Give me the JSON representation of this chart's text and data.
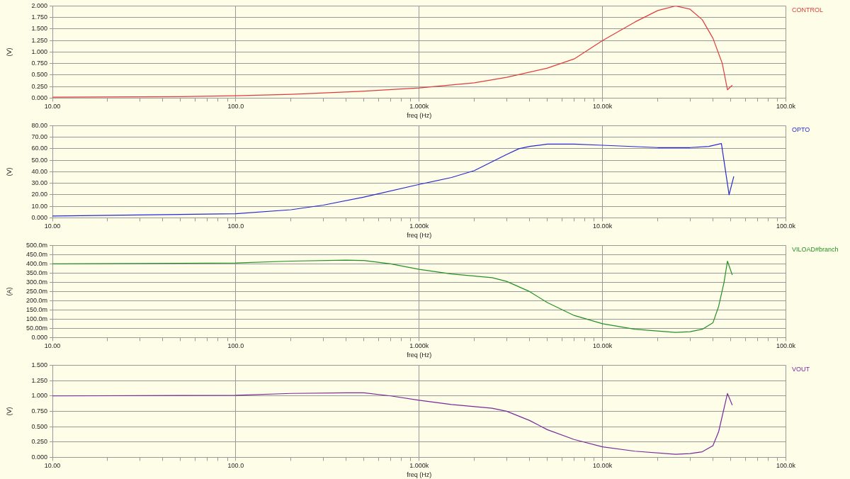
{
  "chart_data": [
    {
      "type": "line",
      "xlabel": "freq (Hz)",
      "ylabel": "(V)",
      "log": "x",
      "grid": true,
      "legend": "top right",
      "marker": "none",
      "line_style": "solid",
      "xlim": [
        10,
        100000
      ],
      "xticks": [
        {
          "value": 10,
          "label": "10.00"
        },
        {
          "value": 20,
          "label": null
        },
        {
          "value": 30,
          "label": null
        },
        {
          "value": 40,
          "label": null
        },
        {
          "value": 50,
          "label": null
        },
        {
          "value": 60,
          "label": null
        },
        {
          "value": 70,
          "label": null
        },
        {
          "value": 80,
          "label": null
        },
        {
          "value": 90,
          "label": null
        },
        {
          "value": 100,
          "label": "100.0"
        },
        {
          "value": 200,
          "label": null
        },
        {
          "value": 300,
          "label": null
        },
        {
          "value": 400,
          "label": null
        },
        {
          "value": 500,
          "label": null
        },
        {
          "value": 600,
          "label": null
        },
        {
          "value": 700,
          "label": null
        },
        {
          "value": 800,
          "label": null
        },
        {
          "value": 900,
          "label": null
        },
        {
          "value": 1000,
          "label": "1.000k"
        },
        {
          "value": 2000,
          "label": null
        },
        {
          "value": 3000,
          "label": null
        },
        {
          "value": 4000,
          "label": null
        },
        {
          "value": 5000,
          "label": null
        },
        {
          "value": 6000,
          "label": null
        },
        {
          "value": 7000,
          "label": null
        },
        {
          "value": 8000,
          "label": null
        },
        {
          "value": 9000,
          "label": null
        },
        {
          "value": 10000,
          "label": "10.00k"
        },
        {
          "value": 20000,
          "label": null
        },
        {
          "value": 30000,
          "label": null
        },
        {
          "value": 40000,
          "label": null
        },
        {
          "value": 50000,
          "label": null
        },
        {
          "value": 60000,
          "label": null
        },
        {
          "value": 70000,
          "label": null
        },
        {
          "value": 80000,
          "label": null
        },
        {
          "value": 90000,
          "label": null
        },
        {
          "value": 100000,
          "label": "100.0k"
        }
      ],
      "ylim": [
        0,
        2
      ],
      "yticks": [
        {
          "value": 0,
          "label": "0.000"
        },
        {
          "value": 0.25,
          "label": "0.250"
        },
        {
          "value": 0.5,
          "label": "0.500"
        },
        {
          "value": 0.75,
          "label": "0.750"
        },
        {
          "value": 1,
          "label": "1.000"
        },
        {
          "value": 1.25,
          "label": "1.250"
        },
        {
          "value": 1.5,
          "label": "1.500"
        },
        {
          "value": 1.75,
          "label": "1.750"
        },
        {
          "value": 2,
          "label": "2.000"
        }
      ],
      "x": [
        10,
        50,
        100,
        200,
        500,
        1000,
        2000,
        3000,
        5000,
        7000,
        10000,
        15000,
        20000,
        25000,
        30000,
        35000,
        40000,
        45000,
        48000,
        51000
      ],
      "series": [
        {
          "name": "CONTROL",
          "color": "#e03c3c",
          "values": [
            0.02,
            0.03,
            0.05,
            0.08,
            0.15,
            0.22,
            0.33,
            0.45,
            0.65,
            0.85,
            1.25,
            1.65,
            1.9,
            2.0,
            1.93,
            1.7,
            1.3,
            0.75,
            0.18,
            0.28
          ]
        }
      ]
    },
    {
      "type": "line",
      "xlabel": "freq (Hz)",
      "ylabel": "(V)",
      "log": "x",
      "grid": true,
      "legend": "top right",
      "marker": "none",
      "line_style": "solid",
      "xlim": [
        10,
        100000
      ],
      "xticks": [
        {
          "value": 10,
          "label": "10.00"
        },
        {
          "value": 20,
          "label": null
        },
        {
          "value": 30,
          "label": null
        },
        {
          "value": 40,
          "label": null
        },
        {
          "value": 50,
          "label": null
        },
        {
          "value": 60,
          "label": null
        },
        {
          "value": 70,
          "label": null
        },
        {
          "value": 80,
          "label": null
        },
        {
          "value": 90,
          "label": null
        },
        {
          "value": 100,
          "label": "100.0"
        },
        {
          "value": 200,
          "label": null
        },
        {
          "value": 300,
          "label": null
        },
        {
          "value": 400,
          "label": null
        },
        {
          "value": 500,
          "label": null
        },
        {
          "value": 600,
          "label": null
        },
        {
          "value": 700,
          "label": null
        },
        {
          "value": 800,
          "label": null
        },
        {
          "value": 900,
          "label": null
        },
        {
          "value": 1000,
          "label": "1.000k"
        },
        {
          "value": 2000,
          "label": null
        },
        {
          "value": 3000,
          "label": null
        },
        {
          "value": 4000,
          "label": null
        },
        {
          "value": 5000,
          "label": null
        },
        {
          "value": 6000,
          "label": null
        },
        {
          "value": 7000,
          "label": null
        },
        {
          "value": 8000,
          "label": null
        },
        {
          "value": 9000,
          "label": null
        },
        {
          "value": 10000,
          "label": "10.00k"
        },
        {
          "value": 20000,
          "label": null
        },
        {
          "value": 30000,
          "label": null
        },
        {
          "value": 40000,
          "label": null
        },
        {
          "value": 50000,
          "label": null
        },
        {
          "value": 60000,
          "label": null
        },
        {
          "value": 70000,
          "label": null
        },
        {
          "value": 80000,
          "label": null
        },
        {
          "value": 90000,
          "label": null
        },
        {
          "value": 100000,
          "label": "100.0k"
        }
      ],
      "ylim": [
        0,
        80
      ],
      "yticks": [
        {
          "value": 0,
          "label": "0.000"
        },
        {
          "value": 10,
          "label": "10.00"
        },
        {
          "value": 20,
          "label": "20.00"
        },
        {
          "value": 30,
          "label": "30.00"
        },
        {
          "value": 40,
          "label": "40.00"
        },
        {
          "value": 50,
          "label": "50.00"
        },
        {
          "value": 60,
          "label": "60.00"
        },
        {
          "value": 70,
          "label": "70.00"
        },
        {
          "value": 80,
          "label": "80.00"
        }
      ],
      "x": [
        10,
        100,
        200,
        300,
        500,
        1000,
        1500,
        2000,
        3000,
        3500,
        4000,
        5000,
        7000,
        10000,
        20000,
        30000,
        38000,
        44500,
        49000,
        52000
      ],
      "series": [
        {
          "name": "OPTO",
          "color": "#2828d0",
          "values": [
            1.5,
            3.5,
            7,
            11,
            18,
            29,
            35,
            41,
            55,
            60,
            62,
            64,
            64,
            63,
            61,
            61,
            62,
            64.5,
            20,
            36
          ]
        }
      ]
    },
    {
      "type": "line",
      "xlabel": "freq (Hz)",
      "ylabel": "(A)",
      "log": "x",
      "grid": true,
      "legend": "top right",
      "marker": "none",
      "line_style": "solid",
      "xlim": [
        10,
        100000
      ],
      "xticks": [
        {
          "value": 10,
          "label": "10.00"
        },
        {
          "value": 20,
          "label": null
        },
        {
          "value": 30,
          "label": null
        },
        {
          "value": 40,
          "label": null
        },
        {
          "value": 50,
          "label": null
        },
        {
          "value": 60,
          "label": null
        },
        {
          "value": 70,
          "label": null
        },
        {
          "value": 80,
          "label": null
        },
        {
          "value": 90,
          "label": null
        },
        {
          "value": 100,
          "label": "100.0"
        },
        {
          "value": 200,
          "label": null
        },
        {
          "value": 300,
          "label": null
        },
        {
          "value": 400,
          "label": null
        },
        {
          "value": 500,
          "label": null
        },
        {
          "value": 600,
          "label": null
        },
        {
          "value": 700,
          "label": null
        },
        {
          "value": 800,
          "label": null
        },
        {
          "value": 900,
          "label": null
        },
        {
          "value": 1000,
          "label": "1.000k"
        },
        {
          "value": 2000,
          "label": null
        },
        {
          "value": 3000,
          "label": null
        },
        {
          "value": 4000,
          "label": null
        },
        {
          "value": 5000,
          "label": null
        },
        {
          "value": 6000,
          "label": null
        },
        {
          "value": 7000,
          "label": null
        },
        {
          "value": 8000,
          "label": null
        },
        {
          "value": 9000,
          "label": null
        },
        {
          "value": 10000,
          "label": "10.00k"
        },
        {
          "value": 20000,
          "label": null
        },
        {
          "value": 30000,
          "label": null
        },
        {
          "value": 40000,
          "label": null
        },
        {
          "value": 50000,
          "label": null
        },
        {
          "value": 60000,
          "label": null
        },
        {
          "value": 70000,
          "label": null
        },
        {
          "value": 80000,
          "label": null
        },
        {
          "value": 90000,
          "label": null
        },
        {
          "value": 100000,
          "label": "100.0k"
        }
      ],
      "ylim": [
        0,
        500
      ],
      "yticks": [
        {
          "value": 0,
          "label": "0.000"
        },
        {
          "value": 50,
          "label": "50.00m"
        },
        {
          "value": 100,
          "label": "100.0m"
        },
        {
          "value": 150,
          "label": "150.0m"
        },
        {
          "value": 200,
          "label": "200.0m"
        },
        {
          "value": 250,
          "label": "250.0m"
        },
        {
          "value": 300,
          "label": "300.0m"
        },
        {
          "value": 350,
          "label": "350.0m"
        },
        {
          "value": 400,
          "label": "400.0m"
        },
        {
          "value": 450,
          "label": "450.0m"
        },
        {
          "value": 500,
          "label": "500.0m"
        }
      ],
      "x": [
        10,
        100,
        200,
        400,
        500,
        700,
        1000,
        1500,
        2500,
        3000,
        4000,
        5000,
        7000,
        10000,
        15000,
        25000,
        30000,
        35000,
        40000,
        43000,
        46000,
        48000,
        51000
      ],
      "series": [
        {
          "name": "VILOAD#branch",
          "color": "#259025",
          "values": [
            400,
            405,
            415,
            420,
            418,
            400,
            370,
            345,
            325,
            305,
            250,
            190,
            120,
            75,
            45,
            28,
            32,
            45,
            80,
            170,
            300,
            415,
            340
          ]
        }
      ]
    },
    {
      "type": "line",
      "xlabel": "freq (Hz)",
      "ylabel": "(V)",
      "log": "x",
      "grid": true,
      "legend": "top right",
      "marker": "none",
      "line_style": "solid",
      "xlim": [
        10,
        100000
      ],
      "xticks": [
        {
          "value": 10,
          "label": "10.00"
        },
        {
          "value": 20,
          "label": null
        },
        {
          "value": 30,
          "label": null
        },
        {
          "value": 40,
          "label": null
        },
        {
          "value": 50,
          "label": null
        },
        {
          "value": 60,
          "label": null
        },
        {
          "value": 70,
          "label": null
        },
        {
          "value": 80,
          "label": null
        },
        {
          "value": 90,
          "label": null
        },
        {
          "value": 100,
          "label": "100.0"
        },
        {
          "value": 200,
          "label": null
        },
        {
          "value": 300,
          "label": null
        },
        {
          "value": 400,
          "label": null
        },
        {
          "value": 500,
          "label": null
        },
        {
          "value": 600,
          "label": null
        },
        {
          "value": 700,
          "label": null
        },
        {
          "value": 800,
          "label": null
        },
        {
          "value": 900,
          "label": null
        },
        {
          "value": 1000,
          "label": "1.000k"
        },
        {
          "value": 2000,
          "label": null
        },
        {
          "value": 3000,
          "label": null
        },
        {
          "value": 4000,
          "label": null
        },
        {
          "value": 5000,
          "label": null
        },
        {
          "value": 6000,
          "label": null
        },
        {
          "value": 7000,
          "label": null
        },
        {
          "value": 8000,
          "label": null
        },
        {
          "value": 9000,
          "label": null
        },
        {
          "value": 10000,
          "label": "10.00k"
        },
        {
          "value": 20000,
          "label": null
        },
        {
          "value": 30000,
          "label": null
        },
        {
          "value": 40000,
          "label": null
        },
        {
          "value": 50000,
          "label": null
        },
        {
          "value": 60000,
          "label": null
        },
        {
          "value": 70000,
          "label": null
        },
        {
          "value": 80000,
          "label": null
        },
        {
          "value": 90000,
          "label": null
        },
        {
          "value": 100000,
          "label": "100.0k"
        }
      ],
      "ylim": [
        0,
        1.5
      ],
      "yticks": [
        {
          "value": 0,
          "label": "0.000"
        },
        {
          "value": 0.25,
          "label": "0.250"
        },
        {
          "value": 0.5,
          "label": "0.500"
        },
        {
          "value": 0.75,
          "label": "0.750"
        },
        {
          "value": 1,
          "label": "1.000"
        },
        {
          "value": 1.25,
          "label": "1.250"
        },
        {
          "value": 1.5,
          "label": "1.500"
        }
      ],
      "x": [
        10,
        100,
        200,
        400,
        500,
        700,
        1000,
        1500,
        2500,
        3000,
        4000,
        5000,
        7000,
        10000,
        15000,
        25000,
        30000,
        35000,
        40000,
        43000,
        48000,
        51000
      ],
      "series": [
        {
          "name": "VOUT",
          "color": "#7b2a9a",
          "values": [
            1.0,
            1.01,
            1.04,
            1.05,
            1.05,
            1.0,
            0.93,
            0.86,
            0.8,
            0.75,
            0.6,
            0.45,
            0.29,
            0.17,
            0.1,
            0.05,
            0.06,
            0.09,
            0.19,
            0.42,
            1.04,
            0.85
          ]
        }
      ]
    }
  ]
}
